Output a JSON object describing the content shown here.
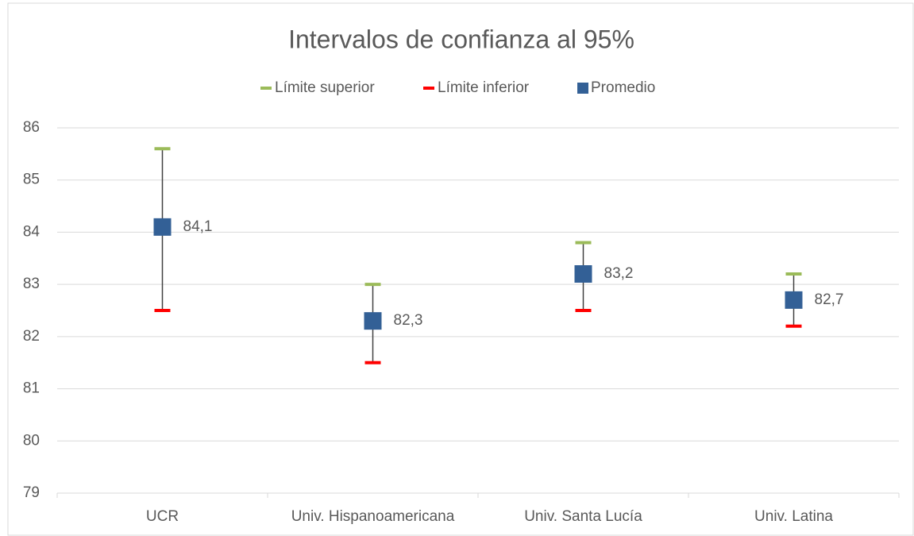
{
  "chart_data": {
    "type": "interval",
    "title": "Intervalos de confianza al 95%",
    "categories": [
      "UCR",
      "Univ. Hispanoamericana",
      "Univ. Santa Lucía",
      "Univ. Latina"
    ],
    "series": [
      {
        "name": "Límite superior",
        "color": "#9bbb59",
        "values": [
          85.6,
          83.0,
          83.8,
          83.2
        ]
      },
      {
        "name": "Límite inferior",
        "color": "#ff0000",
        "values": [
          82.5,
          81.5,
          82.5,
          82.2
        ]
      },
      {
        "name": "Promedio",
        "color": "#336096",
        "values": [
          84.1,
          82.3,
          83.2,
          82.7
        ],
        "value_labels": [
          "84,1",
          "82,3",
          "83,2",
          "82,7"
        ]
      }
    ],
    "ylim": [
      79,
      86
    ],
    "yticks": [
      79,
      80,
      81,
      82,
      83,
      84,
      85,
      86
    ],
    "grid": true,
    "legend": "top"
  }
}
